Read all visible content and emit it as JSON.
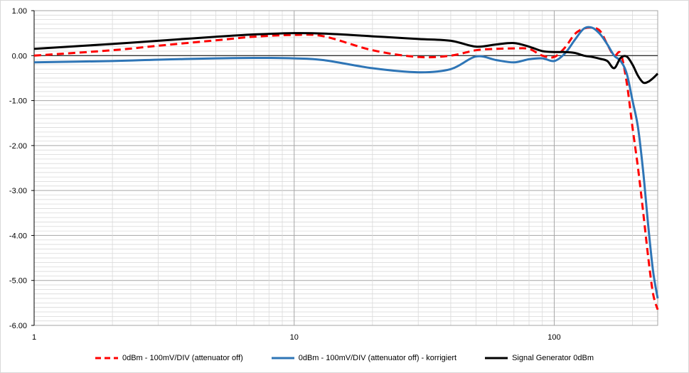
{
  "chart_data": {
    "type": "line",
    "title": "",
    "xlabel": "",
    "ylabel": "",
    "x_scale": "log",
    "xlim": [
      1,
      250
    ],
    "ylim": [
      -6.0,
      1.0
    ],
    "y_ticks": [
      1.0,
      0.0,
      -1.0,
      -2.0,
      -3.0,
      -4.0,
      -5.0,
      -6.0
    ],
    "y_tick_labels": [
      "1.00",
      "0.00",
      "-1.00",
      "-2.00",
      "-3.00",
      "-4.00",
      "-5.00",
      "-6.00"
    ],
    "x_ticks": [
      1,
      10,
      100
    ],
    "x_tick_labels": [
      "1",
      "10",
      "100"
    ],
    "grid": true,
    "legend_position": "bottom",
    "series": [
      {
        "name": "0dBm - 100mV/DIV (attenuator off)",
        "color": "#ff0000",
        "dash": "dashed",
        "x": [
          1,
          2,
          3,
          5,
          7,
          10,
          13,
          20,
          30,
          40,
          50,
          60,
          70,
          80,
          90,
          100,
          110,
          120,
          130,
          140,
          150,
          160,
          170,
          180,
          190,
          200,
          210,
          220,
          230,
          240,
          250
        ],
        "y": [
          0.0,
          0.12,
          0.22,
          0.34,
          0.42,
          0.46,
          0.43,
          0.12,
          -0.03,
          0.0,
          0.12,
          0.15,
          0.16,
          0.15,
          0.0,
          -0.03,
          0.18,
          0.48,
          0.6,
          0.62,
          0.55,
          0.25,
          0.0,
          0.05,
          -0.6,
          -1.6,
          -2.5,
          -3.5,
          -4.5,
          -5.3,
          -5.65
        ]
      },
      {
        "name": "0dBm - 100mV/DIV (attenuator off) - korrigiert",
        "color": "#2e75b6",
        "dash": "solid",
        "x": [
          1,
          2,
          3,
          5,
          7,
          10,
          13,
          20,
          30,
          40,
          50,
          60,
          70,
          80,
          90,
          100,
          110,
          120,
          130,
          140,
          150,
          160,
          170,
          180,
          190,
          200,
          210,
          220,
          230,
          240,
          250
        ],
        "y": [
          -0.15,
          -0.12,
          -0.09,
          -0.06,
          -0.05,
          -0.06,
          -0.1,
          -0.28,
          -0.37,
          -0.3,
          -0.02,
          -0.1,
          -0.15,
          -0.08,
          -0.06,
          -0.12,
          0.05,
          0.35,
          0.6,
          0.62,
          0.48,
          0.25,
          0.0,
          -0.12,
          -0.4,
          -1.0,
          -1.6,
          -2.6,
          -3.8,
          -4.8,
          -5.4
        ]
      },
      {
        "name": "Signal Generator 0dBm",
        "color": "#000000",
        "dash": "solid",
        "x": [
          1,
          2,
          3,
          5,
          7,
          10,
          13,
          20,
          30,
          40,
          50,
          60,
          70,
          80,
          90,
          100,
          110,
          120,
          130,
          140,
          150,
          160,
          170,
          180,
          190,
          200,
          210,
          220,
          230,
          240,
          250
        ],
        "y": [
          0.15,
          0.26,
          0.33,
          0.42,
          0.47,
          0.5,
          0.49,
          0.43,
          0.37,
          0.33,
          0.2,
          0.25,
          0.28,
          0.2,
          0.1,
          0.08,
          0.08,
          0.06,
          0.0,
          -0.03,
          -0.07,
          -0.12,
          -0.28,
          -0.05,
          -0.02,
          -0.2,
          -0.45,
          -0.6,
          -0.58,
          -0.5,
          -0.4
        ]
      }
    ]
  }
}
